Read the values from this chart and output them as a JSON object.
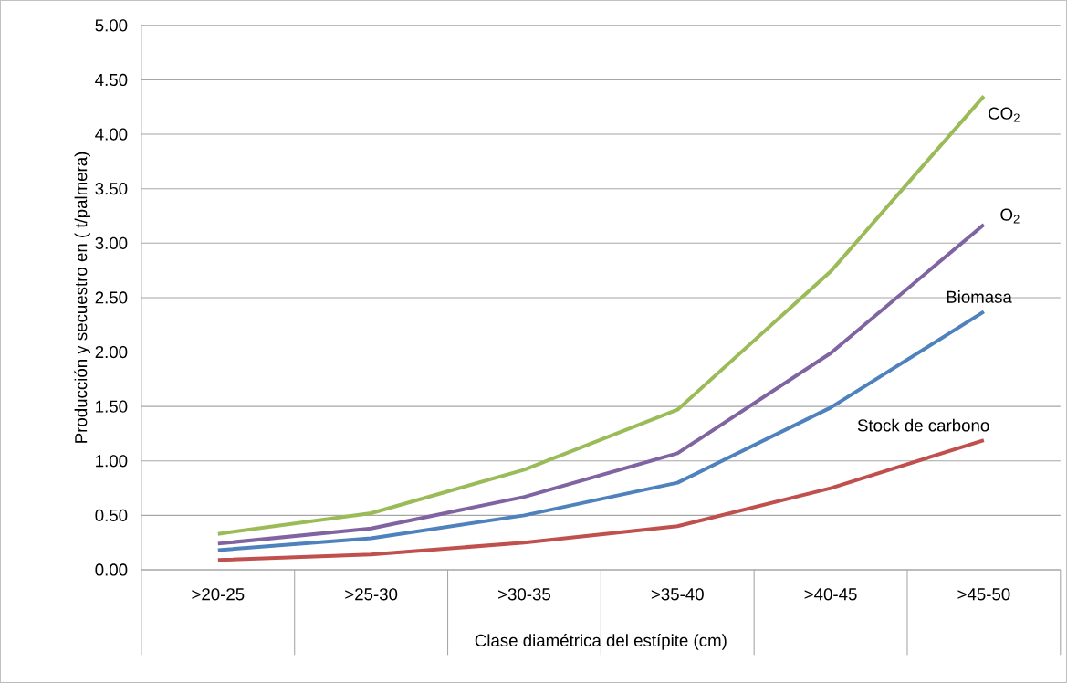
{
  "chart_data": {
    "type": "line",
    "xlabel": "Clase diamétrica del estípite (cm)",
    "ylabel": "Producción y secuestro en ( t/palmera)",
    "categories": [
      ">20-25",
      ">25-30",
      ">30-35",
      ">35-40",
      ">40-45",
      ">45-50"
    ],
    "series": [
      {
        "name": "CO$_{2}$",
        "color": "#9bbb59",
        "values": [
          0.33,
          0.52,
          0.92,
          1.47,
          2.74,
          4.35
        ]
      },
      {
        "name": "O$_{2}$",
        "color": "#8064a2",
        "values": [
          0.24,
          0.38,
          0.67,
          1.07,
          1.99,
          3.17
        ]
      },
      {
        "name": "Biomasa",
        "color": "#4f81bd",
        "values": [
          0.18,
          0.29,
          0.5,
          0.8,
          1.49,
          2.37
        ]
      },
      {
        "name": "Stock de carbono",
        "color": "#c0504d",
        "values": [
          0.09,
          0.14,
          0.25,
          0.4,
          0.75,
          1.19
        ]
      }
    ],
    "ylim": [
      0,
      5
    ],
    "yticks": [
      {
        "value": 0,
        "label": "0.00"
      },
      {
        "value": 0.5,
        "label": "0.50"
      },
      {
        "value": 1,
        "label": "1.00"
      },
      {
        "value": 1.5,
        "label": "1.50"
      },
      {
        "value": 2,
        "label": "2.00"
      },
      {
        "value": 2.5,
        "label": "2.50"
      },
      {
        "value": 3,
        "label": "3.00"
      },
      {
        "value": 3.5,
        "label": "3.50"
      },
      {
        "value": 4,
        "label": "4.00"
      },
      {
        "value": 4.5,
        "label": "4.50"
      },
      {
        "value": 5,
        "label": "5.00"
      }
    ],
    "grid": "y",
    "marker": "none",
    "line_style": "solid"
  }
}
